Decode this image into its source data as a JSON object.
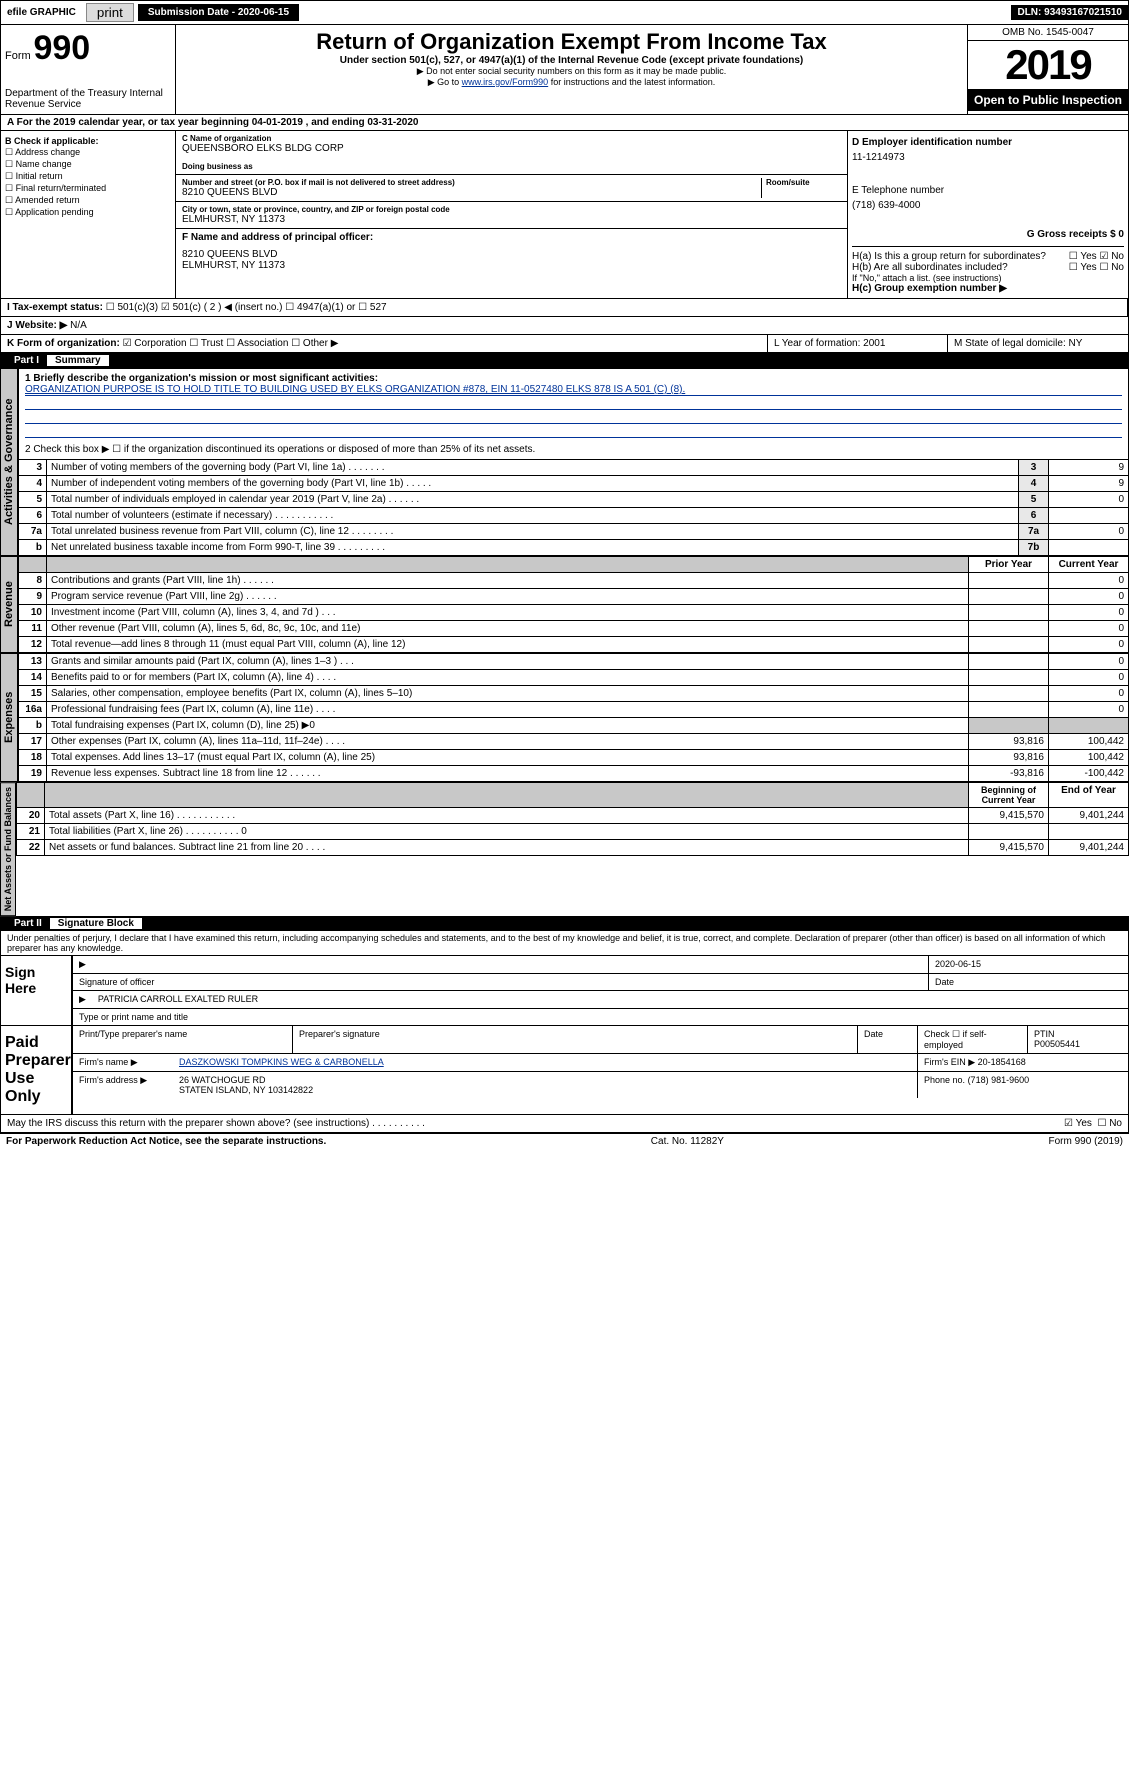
{
  "topbar": {
    "efile": "efile GRAPHIC",
    "print": "print",
    "submission": "Submission Date - 2020-06-15",
    "dln": "DLN: 93493167021510"
  },
  "header": {
    "form_prefix": "Form",
    "form_num": "990",
    "dept": "Department of the Treasury Internal Revenue Service",
    "title": "Return of Organization Exempt From Income Tax",
    "subtitle": "Under section 501(c), 527, or 4947(a)(1) of the Internal Revenue Code (except private foundations)",
    "note1": "▶ Do not enter social security numbers on this form as it may be made public.",
    "note2_pre": "▶ Go to ",
    "note2_link": "www.irs.gov/Form990",
    "note2_post": " for instructions and the latest information.",
    "omb": "OMB No. 1545-0047",
    "year": "2019",
    "open": "Open to Public Inspection"
  },
  "period": "For the 2019 calendar year, or tax year beginning 04-01-2019     , and ending 03-31-2020",
  "colB": {
    "hdr": "B Check if applicable:",
    "items": [
      "☐ Address change",
      "☐ Name change",
      "☐ Initial return",
      "☐ Final return/terminated",
      "☐ Amended return",
      "☐ Application pending"
    ]
  },
  "colC": {
    "name_lbl": "C Name of organization",
    "name": "QUEENSBORO ELKS BLDG CORP",
    "dba_lbl": "Doing business as",
    "addr_lbl": "Number and street (or P.O. box if mail is not delivered to street address)",
    "room_lbl": "Room/suite",
    "addr": "8210 QUEENS BLVD",
    "city_lbl": "City or town, state or province, country, and ZIP or foreign postal code",
    "city": "ELMHURST, NY  11373",
    "officer_lbl": "F Name and address of principal officer:",
    "officer_addr1": "8210 QUEENS BLVD",
    "officer_addr2": "ELMHURST, NY  11373"
  },
  "colD": {
    "ein_lbl": "D Employer identification number",
    "ein": "11-1214973",
    "phone_lbl": "E Telephone number",
    "phone": "(718) 639-4000",
    "gross_lbl": "G Gross receipts $ 0"
  },
  "colH": {
    "ha": "H(a)  Is this a group return for subordinates?",
    "ha_yes": "☐ Yes",
    "ha_no": "☑ No",
    "hb": "H(b)  Are all subordinates included?",
    "hb_yes": "☐ Yes",
    "hb_no": "☐ No",
    "hb_note": "If \"No,\" attach a list. (see instructions)",
    "hc": "H(c)  Group exemption number ▶"
  },
  "rowI": {
    "lbl": "I   Tax-exempt status:",
    "opts": "☐ 501(c)(3)   ☑ 501(c) ( 2 ) ◀ (insert no.)   ☐ 4947(a)(1) or   ☐ 527"
  },
  "rowJ": {
    "lbl": "J   Website: ▶",
    "val": "N/A"
  },
  "rowK": {
    "lbl": "K Form of organization:",
    "opts": "☑ Corporation  ☐ Trust  ☐ Association  ☐ Other ▶",
    "l": "L Year of formation: 2001",
    "m": "M State of legal domicile: NY"
  },
  "part1": {
    "hdr": "Part I",
    "title": "Summary"
  },
  "summary": {
    "l1_lbl": "1  Briefly describe the organization's mission or most significant activities:",
    "l1_text": "ORGANIZATION PURPOSE IS TO HOLD TITLE TO BUILDING USED BY ELKS ORGANIZATION #878, EIN 11-0527480 ELKS 878 IS A 501 (C) (8).",
    "l2": "2   Check this box ▶ ☐  if the organization discontinued its operations or disposed of more than 25% of its net assets.",
    "rows_ag": [
      {
        "n": "3",
        "t": "Number of voting members of the governing body (Part VI, line 1a)   .    .    .    .    .    .    .",
        "bn": "3",
        "v": "9"
      },
      {
        "n": "4",
        "t": "Number of independent voting members of the governing body (Part VI, line 1b)   .    .    .    .    .",
        "bn": "4",
        "v": "9"
      },
      {
        "n": "5",
        "t": "Total number of individuals employed in calendar year 2019 (Part V, line 2a)   .    .    .    .    .    .",
        "bn": "5",
        "v": "0"
      },
      {
        "n": "6",
        "t": "Total number of volunteers (estimate if necessary)    .    .    .    .    .    .    .    .    .    .    .",
        "bn": "6",
        "v": ""
      },
      {
        "n": "7a",
        "t": "Total unrelated business revenue from Part VIII, column (C), line 12    .    .    .    .    .    .    .    .",
        "bn": "7a",
        "v": "0"
      },
      {
        "n": "b",
        "t": "Net unrelated business taxable income from Form 990-T, line 39   .    .    .    .    .    .    .    .    .",
        "bn": "7b",
        "v": ""
      }
    ],
    "col_prior": "Prior Year",
    "col_current": "Current Year",
    "rev_rows": [
      {
        "n": "8",
        "t": "Contributions and grants (Part VIII, line 1h)   .    .    .    .    .    .",
        "p": "",
        "c": "0"
      },
      {
        "n": "9",
        "t": "Program service revenue (Part VIII, line 2g)    .    .    .    .    .    .",
        "p": "",
        "c": "0"
      },
      {
        "n": "10",
        "t": "Investment income (Part VIII, column (A), lines 3, 4, and 7d )   .    .    .",
        "p": "",
        "c": "0"
      },
      {
        "n": "11",
        "t": "Other revenue (Part VIII, column (A), lines 5, 6d, 8c, 9c, 10c, and 11e)",
        "p": "",
        "c": "0"
      },
      {
        "n": "12",
        "t": "Total revenue—add lines 8 through 11 (must equal Part VIII, column (A), line 12)",
        "p": "",
        "c": "0"
      }
    ],
    "exp_rows": [
      {
        "n": "13",
        "t": "Grants and similar amounts paid (Part IX, column (A), lines 1–3 )   .    .    .",
        "p": "",
        "c": "0"
      },
      {
        "n": "14",
        "t": "Benefits paid to or for members (Part IX, column (A), line 4)   .    .    .    .",
        "p": "",
        "c": "0"
      },
      {
        "n": "15",
        "t": "Salaries, other compensation, employee benefits (Part IX, column (A), lines 5–10)",
        "p": "",
        "c": "0"
      },
      {
        "n": "16a",
        "t": "Professional fundraising fees (Part IX, column (A), line 11e)    .    .    .    .",
        "p": "",
        "c": "0"
      },
      {
        "n": "b",
        "t": "Total fundraising expenses (Part IX, column (D), line 25) ▶0",
        "p": "grey",
        "c": "grey"
      },
      {
        "n": "17",
        "t": "Other expenses (Part IX, column (A), lines 11a–11d, 11f–24e)   .    .    .    .",
        "p": "93,816",
        "c": "100,442"
      },
      {
        "n": "18",
        "t": "Total expenses. Add lines 13–17 (must equal Part IX, column (A), line 25)",
        "p": "93,816",
        "c": "100,442"
      },
      {
        "n": "19",
        "t": "Revenue less expenses. Subtract line 18 from line 12   .    .    .    .    .    .",
        "p": "-93,816",
        "c": "-100,442"
      }
    ],
    "col_begin": "Beginning of Current Year",
    "col_end": "End of Year",
    "na_rows": [
      {
        "n": "20",
        "t": "Total assets (Part X, line 16)   .    .    .    .    .    .    .    .    .    .    .",
        "p": "9,415,570",
        "c": "9,401,244"
      },
      {
        "n": "21",
        "t": "Total liabilities (Part X, line 26)   .    .    .    .    .    .    .    .    .    .    0",
        "p": "",
        "c": ""
      },
      {
        "n": "22",
        "t": "Net assets or fund balances. Subtract line 21 from line 20   .    .    .    .",
        "p": "9,415,570",
        "c": "9,401,244"
      }
    ]
  },
  "part2": {
    "hdr": "Part II",
    "title": "Signature Block"
  },
  "perjury": "Under penalties of perjury, I declare that I have examined this return, including accompanying schedules and statements, and to the best of my knowledge and belief, it is true, correct, and complete. Declaration of preparer (other than officer) is based on all information of which preparer has any knowledge.",
  "sign": {
    "here": "Sign Here",
    "sig_officer": "Signature of officer",
    "date": "2020-06-15",
    "date_lbl": "Date",
    "name": "PATRICIA CARROLL  EXALTED RULER",
    "name_lbl": "Type or print name and title"
  },
  "paid": {
    "lbl": "Paid Preparer Use Only",
    "h1": "Print/Type preparer's name",
    "h2": "Preparer's signature",
    "h3": "Date",
    "h4": "Check ☐ if self-employed",
    "h5": "PTIN",
    "ptin": "P00505441",
    "firm_name_lbl": "Firm's name    ▶",
    "firm_name": "DASZKOWSKI TOMPKINS WEG & CARBONELLA",
    "firm_ein_lbl": "Firm's EIN ▶",
    "firm_ein": "20-1854168",
    "firm_addr_lbl": "Firm's address ▶",
    "firm_addr1": "26 WATCHOGUE RD",
    "firm_addr2": "STATEN ISLAND, NY  103142822",
    "phone_lbl": "Phone no.",
    "phone": "(718) 981-9600"
  },
  "discuss": {
    "q": "May the IRS discuss this return with the preparer shown above? (see instructions)    .    .    .    .    .    .    .    .    .    .",
    "yes": "☑ Yes",
    "no": "☐ No"
  },
  "footer": {
    "l": "For Paperwork Reduction Act Notice, see the separate instructions.",
    "m": "Cat. No. 11282Y",
    "r": "Form 990 (2019)"
  },
  "vtabs": {
    "ag": "Activities & Governance",
    "rev": "Revenue",
    "exp": "Expenses",
    "na": "Net Assets or Fund Balances"
  }
}
